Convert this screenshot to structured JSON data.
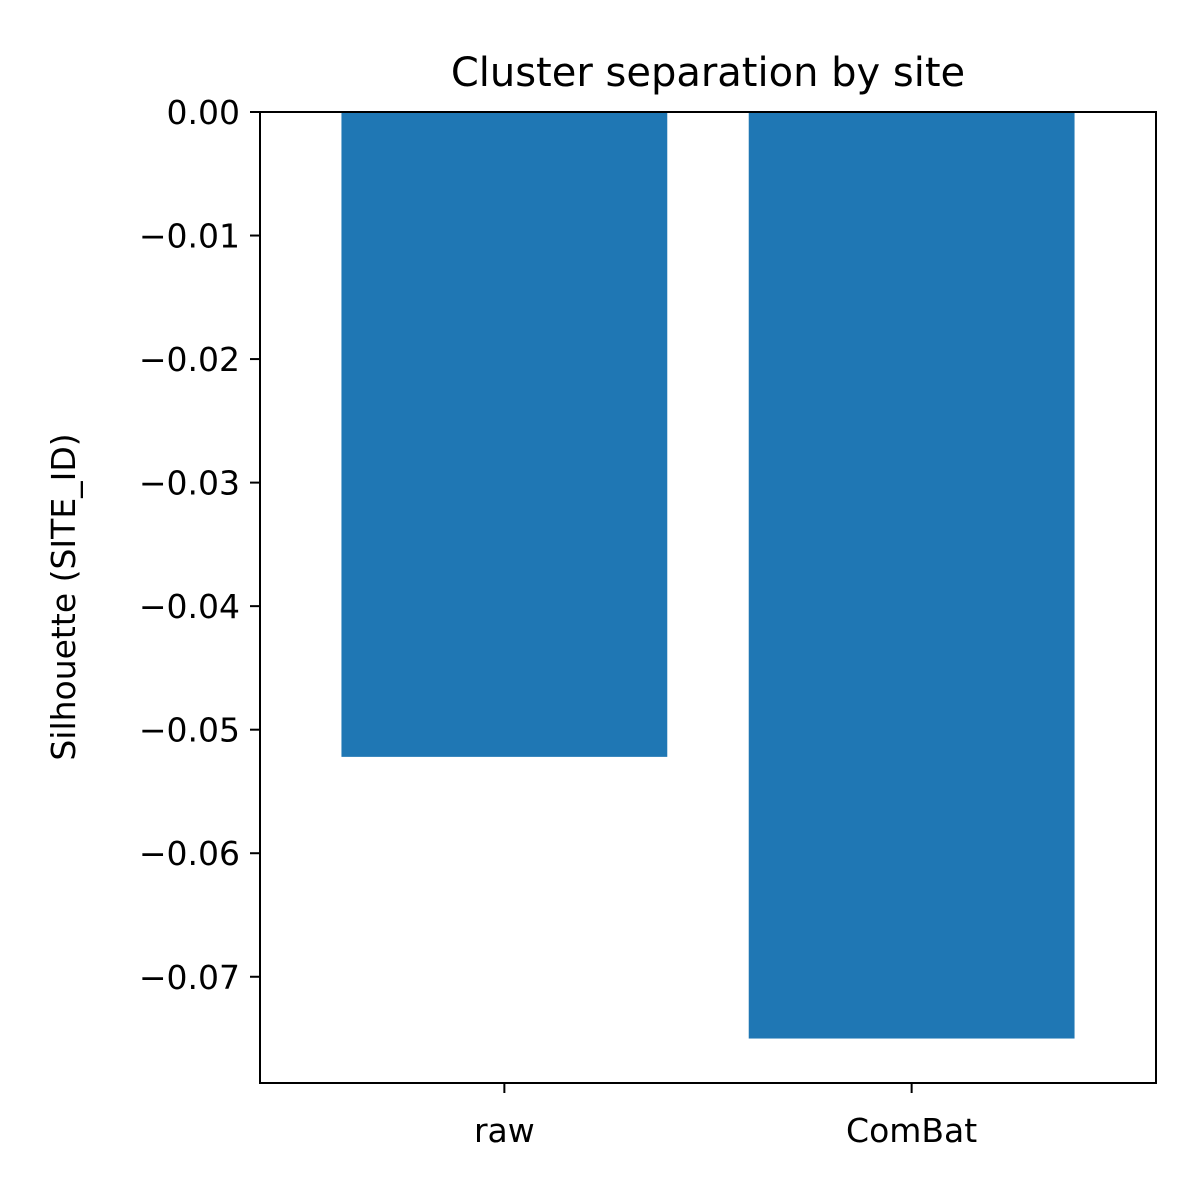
{
  "chart_data": {
    "type": "bar",
    "title": "Cluster separation by site",
    "xlabel": "",
    "ylabel": "Silhouette (SITE_ID)",
    "categories": [
      "raw",
      "ComBat"
    ],
    "values": [
      -0.0522,
      -0.075
    ],
    "ylim": [
      -0.0786,
      0.0
    ],
    "yticks": [
      0.0,
      -0.01,
      -0.02,
      -0.03,
      -0.04,
      -0.05,
      -0.06,
      -0.07
    ],
    "ytick_labels": [
      "0.00",
      "−0.01",
      "−0.02",
      "−0.03",
      "−0.04",
      "−0.05",
      "−0.06",
      "−0.07"
    ],
    "bar_color": "#1f77b4",
    "grid": false,
    "legend": "none"
  }
}
